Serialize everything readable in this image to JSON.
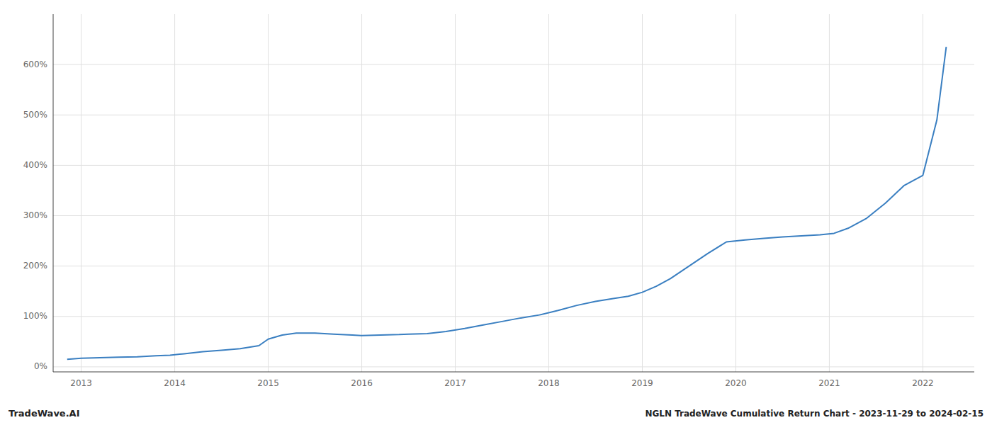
{
  "chart_data": {
    "type": "line",
    "title": "NGLN TradeWave Cumulative Return Chart - 2023-11-29 to 2024-02-15",
    "annotations": [
      "TradeWave.AI"
    ],
    "color": "#3a7fc1",
    "grid": true,
    "x": [
      2012.85,
      2013.0,
      2013.2,
      2013.4,
      2013.6,
      2013.8,
      2013.95,
      2014.1,
      2014.3,
      2014.5,
      2014.7,
      2014.9,
      2015.0,
      2015.15,
      2015.3,
      2015.5,
      2015.7,
      2015.9,
      2016.0,
      2016.2,
      2016.4,
      2016.5,
      2016.7,
      2016.9,
      2017.1,
      2017.3,
      2017.5,
      2017.7,
      2017.9,
      2018.1,
      2018.3,
      2018.5,
      2018.7,
      2018.85,
      2019.0,
      2019.15,
      2019.3,
      2019.5,
      2019.7,
      2019.9,
      2020.1,
      2020.3,
      2020.5,
      2020.7,
      2020.9,
      2021.05,
      2021.2,
      2021.4,
      2021.6,
      2021.8,
      2022.0,
      2022.15,
      2022.25
    ],
    "values": [
      15,
      17,
      18,
      19,
      20,
      22,
      23,
      26,
      30,
      33,
      36,
      42,
      55,
      63,
      67,
      67,
      65,
      63,
      62,
      63,
      64,
      65,
      66,
      70,
      76,
      83,
      90,
      97,
      103,
      112,
      122,
      130,
      136,
      140,
      148,
      160,
      175,
      200,
      225,
      248,
      252,
      255,
      258,
      260,
      262,
      265,
      275,
      295,
      325,
      360,
      380,
      490,
      635
    ],
    "xlim": [
      2012.7,
      2022.55
    ],
    "xticks": [
      2013,
      2014,
      2015,
      2016,
      2017,
      2018,
      2019,
      2020,
      2021,
      2022
    ],
    "ylim": [
      -10,
      700
    ],
    "yticks": [
      {
        "value": 0,
        "label": "0%"
      },
      {
        "value": 100,
        "label": "100%"
      },
      {
        "value": 200,
        "label": "200%"
      },
      {
        "value": 300,
        "label": "300%"
      },
      {
        "value": 400,
        "label": "400%"
      },
      {
        "value": 500,
        "label": "500%"
      },
      {
        "value": 600,
        "label": "600%"
      }
    ]
  }
}
